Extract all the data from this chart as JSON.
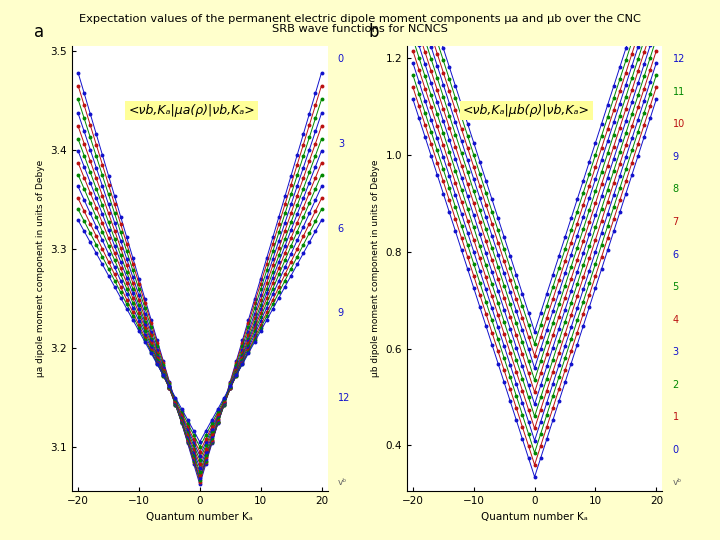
{
  "title_line1": "Expectation values of the permanent electric dipole moment components μa and μb over the CNC",
  "title_line2": "SRB wave functions for NCNCS",
  "bg_color": "#ffffcc",
  "panel_bg": "#ffffff",
  "xlabel": "Quantum number Kₐ",
  "ylabel_a": "μa dipole moment component in units of Debye",
  "ylabel_b": "μb dipole moment component in units of Debye",
  "panel_a_label": "a",
  "panel_b_label": "b",
  "panel_a_annot": "<νb,Kₐ|μa(ρ)|νb,Kₐ>",
  "panel_b_annot": "<νb,Kₐ|μb(ρ)|νb,Kₐ>",
  "Ka_ticks": [
    -20,
    -10,
    0,
    10,
    20
  ],
  "panel_a": {
    "ylim": [
      3.055,
      3.505
    ],
    "yticks": [
      3.1,
      3.2,
      3.3,
      3.4,
      3.5
    ],
    "vb_values": [
      0,
      1,
      2,
      3,
      4,
      5,
      6,
      7,
      8,
      9,
      10,
      11,
      12
    ],
    "vb_legend": [
      "0",
      "3",
      "6",
      "9",
      "12",
      "vᵇ"
    ],
    "base_min": [
      3.062,
      3.065,
      3.067,
      3.069,
      3.072,
      3.075,
      3.079,
      3.083,
      3.087,
      3.091,
      3.095,
      3.1,
      3.105
    ],
    "slope": [
      0.0208,
      0.02,
      0.0192,
      0.0184,
      0.0176,
      0.0168,
      0.016,
      0.0152,
      0.0144,
      0.0136,
      0.0128,
      0.012,
      0.0112
    ]
  },
  "panel_b": {
    "ylim": [
      0.305,
      1.225
    ],
    "yticks": [
      0.4,
      0.6,
      0.8,
      1.0,
      1.2
    ],
    "vb_values": [
      0,
      1,
      2,
      3,
      4,
      5,
      6,
      7,
      8,
      9,
      10,
      11,
      12
    ],
    "vb_legend": [
      "12",
      "11",
      "10",
      "9",
      "8",
      "7",
      "6",
      "5",
      "4",
      "3",
      "2",
      "1",
      "0",
      "vᵇ"
    ],
    "base_min": [
      0.335,
      0.36,
      0.385,
      0.41,
      0.435,
      0.46,
      0.485,
      0.51,
      0.535,
      0.56,
      0.585,
      0.61,
      0.635
    ],
    "slope": [
      0.039,
      0.039,
      0.039,
      0.039,
      0.039,
      0.039,
      0.039,
      0.039,
      0.039,
      0.039,
      0.039,
      0.039,
      0.039
    ]
  },
  "color_cycle": [
    "#1111cc",
    "#bb1111",
    "#008800",
    "#1111cc",
    "#bb1111",
    "#008800",
    "#1111cc",
    "#bb1111",
    "#008800",
    "#1111cc",
    "#bb1111",
    "#008800",
    "#008800"
  ]
}
